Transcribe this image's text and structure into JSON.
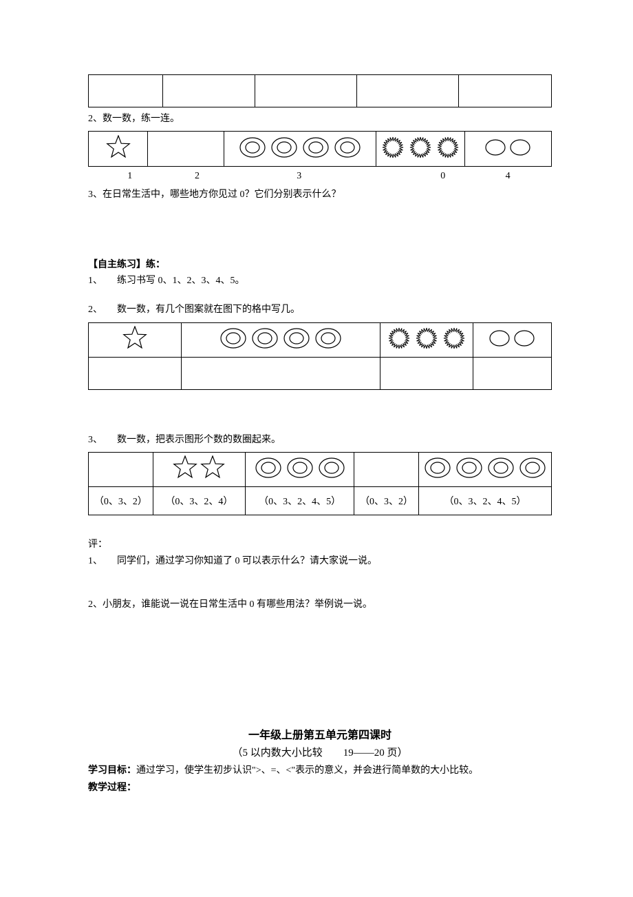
{
  "colors": {
    "text": "#000000",
    "border": "#000000",
    "bg": "#ffffff"
  },
  "top_blank_table": {
    "cols": 5,
    "col_widths_pct": [
      16,
      20,
      22,
      22,
      20
    ]
  },
  "q2": {
    "prompt": "2、数一数，练一连。",
    "cells": [
      {
        "type": "star",
        "count": 1,
        "width_pct": 13
      },
      {
        "type": "empty",
        "count": 0,
        "width_pct": 17
      },
      {
        "type": "double-circle",
        "count": 4,
        "width_pct": 33
      },
      {
        "type": "sun",
        "count": 3,
        "width_pct": 18
      },
      {
        "type": "oval",
        "count": 2,
        "width_pct": 19
      }
    ],
    "numbers": [
      {
        "label": "1",
        "left_pct": 8.5
      },
      {
        "label": "2",
        "left_pct": 23
      },
      {
        "label": "3",
        "left_pct": 45
      },
      {
        "label": "0",
        "left_pct": 76
      },
      {
        "label": "4",
        "left_pct": 90
      }
    ]
  },
  "q3": {
    "prompt": "3、在日常生活中，哪些地方你见过 0？它们分别表示什么？"
  },
  "practice": {
    "heading": "【自主练习】练：",
    "p1": "1、　　练习书写 0、1、2、3、4、5。",
    "p2": "2、　　数一数，有几个图案就在图下的格中写几。",
    "table2_cells": [
      {
        "type": "star",
        "count": 1,
        "width_pct": 20
      },
      {
        "type": "double-circle",
        "count": 4,
        "width_pct": 43
      },
      {
        "type": "sun",
        "count": 3,
        "width_pct": 20
      },
      {
        "type": "oval",
        "count": 2,
        "width_pct": 17
      }
    ],
    "p3": "3、　　数一数，把表示图形个数的数圈起来。",
    "table3": {
      "icon_row": [
        {
          "type": "empty",
          "count": 0
        },
        {
          "type": "star",
          "count": 2
        },
        {
          "type": "double-circle",
          "count": 3
        },
        {
          "type": "empty",
          "count": 0
        },
        {
          "type": "double-circle",
          "count": 4
        }
      ],
      "num_row": [
        "（0、3、2）",
        "（0、3、2、4）",
        "（0、3、2、4、5）",
        "（0、3、2）",
        "（0、3、2、4、5）"
      ],
      "col_widths_pct": [
        16,
        22,
        24,
        16,
        22
      ]
    }
  },
  "review": {
    "heading": "评：",
    "r1": "1、　　同学们，通过学习你知道了 0 可以表示什么？请大家说一说。",
    "r2": "2、小朋友，谁能说一说在日常生活中 0 有哪些用法？举例说一说。"
  },
  "next_lesson": {
    "title": "一年级上册第五单元第四课时",
    "subtitle": "（5 以内数大小比较　　19——20 页）",
    "goal_label": "学习目标：",
    "goal_text": "通过学习，使学生初步认识\">、=、<\"表示的意义，并会进行简单数的大小比较。",
    "process_label": "教学过程："
  },
  "icon_style": {
    "star": {
      "stroke": "#000000",
      "fill": "none",
      "size": 36
    },
    "double_circle": {
      "stroke": "#000000",
      "fill": "none",
      "outer": 30,
      "inner": 16
    },
    "sun": {
      "stroke": "#000000",
      "fill": "none",
      "size": 30,
      "spikes": 24
    },
    "oval": {
      "stroke": "#000000",
      "fill": "none",
      "w": 28,
      "h": 22
    }
  }
}
